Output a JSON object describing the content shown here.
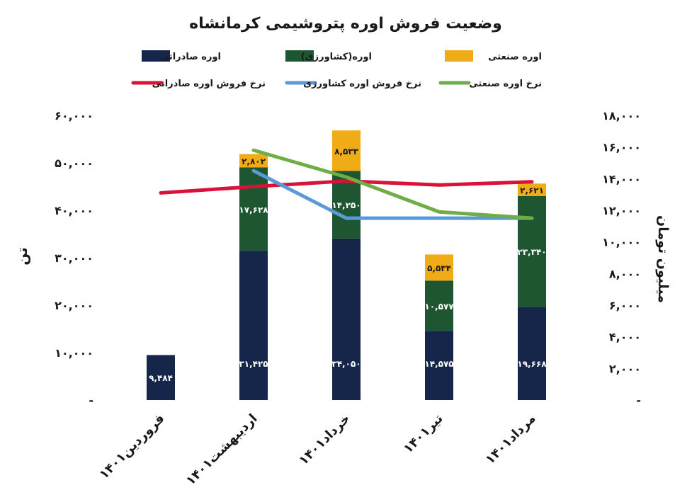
{
  "chart_data": {
    "type": "bar",
    "title": "وضعیت فروش اوره پتروشیمی کرمانشاه",
    "ylabel": "تن",
    "y2label": "میلیون تومان",
    "ylim": [
      0,
      60000
    ],
    "y2lim": [
      0,
      18000
    ],
    "yticks": [
      "-",
      "۱۰,۰۰۰",
      "۲۰,۰۰۰",
      "۳۰,۰۰۰",
      "۴۰,۰۰۰",
      "۵۰,۰۰۰",
      "۶۰,۰۰۰"
    ],
    "y2ticks": [
      "-",
      "۲,۰۰۰",
      "۴,۰۰۰",
      "۶,۰۰۰",
      "۸,۰۰۰",
      "۱۰,۰۰۰",
      "۱۲,۰۰۰",
      "۱۴,۰۰۰",
      "۱۶,۰۰۰",
      "۱۸,۰۰۰"
    ],
    "categories": [
      "فروردین۱۴۰۱",
      "اردیبهشت۱۴۰۱",
      "خرداد۱۴۰۱",
      "تیر۱۴۰۱",
      "مرداد۱۴۰۱"
    ],
    "bar_series": [
      {
        "name": "اوره صادراتی",
        "color": "#15264a",
        "values": [
          9484,
          31425,
          34050,
          14575,
          19668
        ],
        "labels": [
          "۹,۴۸۴",
          "۳۱,۴۲۵",
          "۳۴,۰۵۰",
          "۱۴,۵۷۵",
          "۱۹,۶۶۸"
        ],
        "label_color": "#ffffff"
      },
      {
        "name": "اوره(کشاورزی)",
        "color": "#1e5631",
        "values": [
          0,
          17628,
          14250,
          10577,
          23340
        ],
        "labels": [
          "",
          "۱۷,۶۲۸",
          "۱۴,۲۵۰",
          "۱۰,۵۷۷",
          "۲۳,۳۴۰"
        ],
        "label_color": "#ffffff"
      },
      {
        "name": "اوره صنعتی",
        "color": "#f0ac16",
        "values": [
          0,
          2802,
          8533,
          5534,
          2621
        ],
        "labels": [
          "",
          "۲,۸۰۲",
          "۸,۵۳۳",
          "۵,۵۳۴",
          "۲,۶۲۱"
        ],
        "label_color": "#1a1a1a"
      }
    ],
    "line_series": [
      {
        "name": "نرخ فروش اوره صادراتی",
        "color": "#d9123a",
        "values": [
          13100,
          13500,
          13850,
          13600,
          13800
        ]
      },
      {
        "name": "نرخ فروش اوره کشاورزی",
        "color": "#5b9bd5",
        "values": [
          null,
          14500,
          11500,
          11500,
          11500
        ]
      },
      {
        "name": "نرخ اوره صنعتی",
        "color": "#70ad47",
        "values": [
          null,
          15800,
          14100,
          11900,
          11500
        ]
      }
    ],
    "legend_position": "top",
    "grid": false
  }
}
